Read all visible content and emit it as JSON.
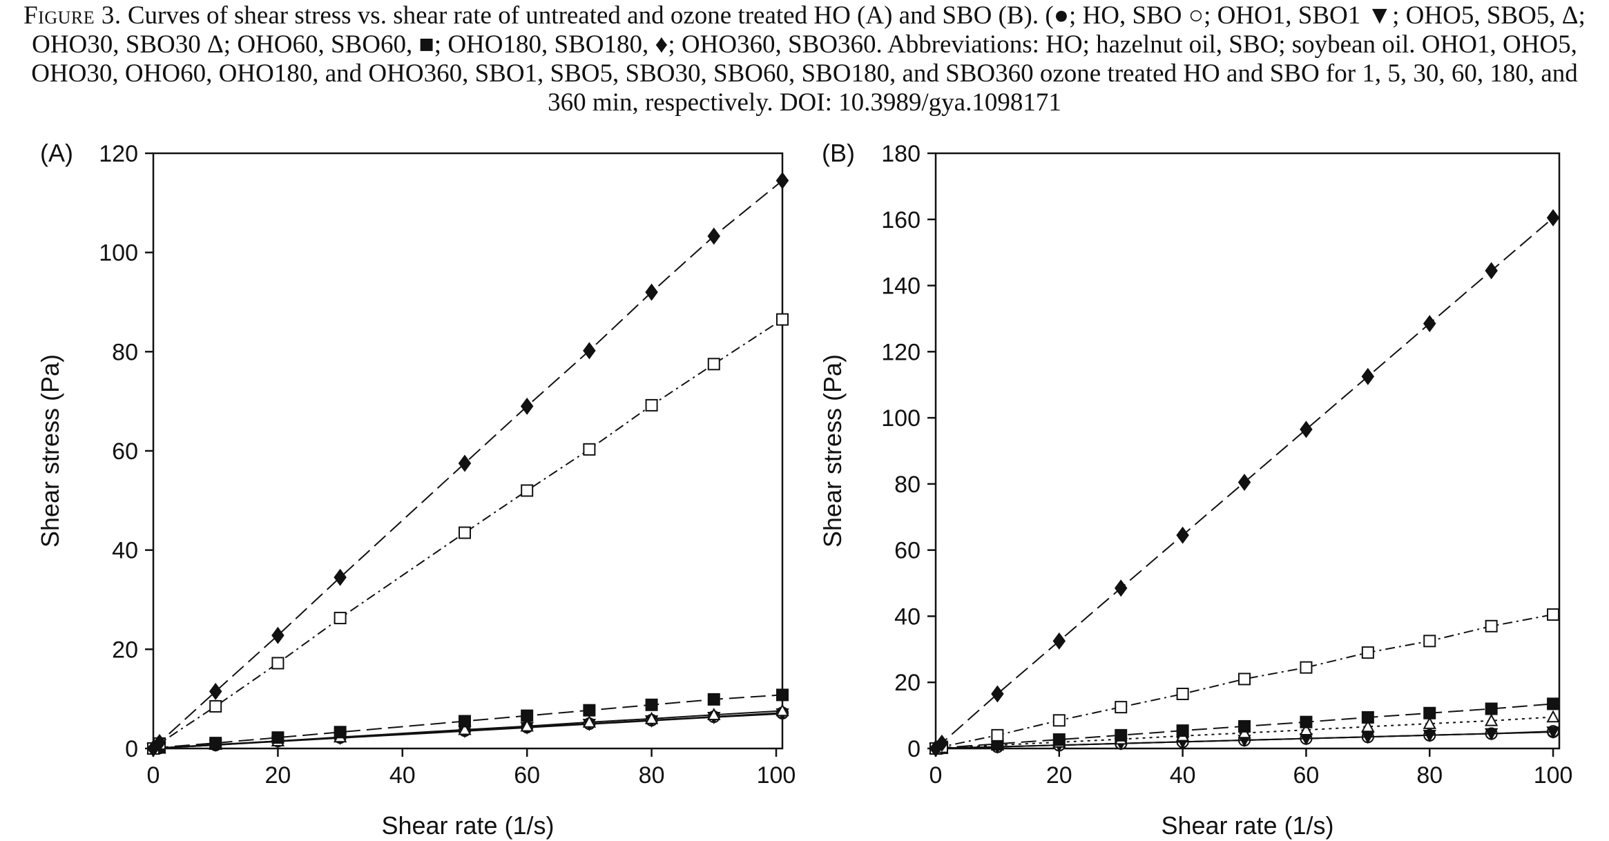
{
  "caption": {
    "label": "Figure 3.",
    "text": "Curves of shear stress vs. shear rate of untreated and ozone treated HO (A) and SBO (B). (●; HO, SBO ○; OHO1, SBO1 ▼; OHO5, SBO5, Δ; OHO30, SBO30 Δ; OHO60, SBO60, ■; OHO180, SBO180, ♦; OHO360, SBO360. Abbreviations: HO; hazelnut oil, SBO; soybean oil. OHO1, OHO5, OHO30, OHO60, OHO180, and OHO360, SBO1, SBO5, SBO30, SBO60, SBO180, and SBO360 ozone treated HO and SBO for 1, 5, 30, 60, 180, and 360 min, respectively. DOI: 10.3989/gya.1098171"
  },
  "chart_data": [
    {
      "type": "line",
      "panel_label": "(A)",
      "xlabel": "Shear rate (1/s)",
      "ylabel": "Shear stress (Pa)",
      "xlim": [
        0,
        101
      ],
      "ylim": [
        0,
        120
      ],
      "xticks": [
        0,
        20,
        40,
        60,
        80,
        100
      ],
      "yticks": [
        0,
        20,
        40,
        60,
        80,
        100,
        120
      ],
      "grid": false,
      "series": [
        {
          "marker": "circle",
          "filled": true,
          "dash": "solid",
          "x": [
            0,
            1,
            10,
            20,
            30,
            50,
            60,
            70,
            80,
            90,
            101
          ],
          "y": [
            0,
            0.1,
            0.7,
            1.5,
            2.2,
            3.6,
            4.3,
            5.0,
            5.7,
            6.4,
            7.1
          ]
        },
        {
          "marker": "circle",
          "filled": false,
          "dash": "solid",
          "x": [
            0,
            1,
            10,
            20,
            30,
            50,
            60,
            70,
            80,
            90,
            101
          ],
          "y": [
            0,
            0.1,
            0.7,
            1.5,
            2.2,
            3.6,
            4.3,
            5.0,
            5.7,
            6.4,
            7.2
          ]
        },
        {
          "marker": "triangle-down",
          "filled": true,
          "dash": "solid",
          "x": [
            0,
            1,
            10,
            20,
            30,
            50,
            60,
            70,
            80,
            90,
            101
          ],
          "y": [
            0,
            0.1,
            0.7,
            1.4,
            2.1,
            3.5,
            4.2,
            4.9,
            5.6,
            6.3,
            7.0
          ]
        },
        {
          "marker": "triangle-up",
          "filled": false,
          "dash": "solid",
          "x": [
            0,
            1,
            10,
            20,
            30,
            50,
            60,
            70,
            80,
            90,
            101
          ],
          "y": [
            0,
            0.1,
            0.8,
            1.5,
            2.3,
            3.8,
            4.5,
            5.3,
            6.0,
            6.8,
            7.6
          ]
        },
        {
          "marker": "square",
          "filled": true,
          "dash": "longdash",
          "x": [
            0,
            1,
            10,
            20,
            30,
            50,
            60,
            70,
            80,
            90,
            101
          ],
          "y": [
            0,
            0.2,
            1.1,
            2.2,
            3.3,
            5.5,
            6.6,
            7.7,
            8.8,
            9.9,
            10.8
          ]
        },
        {
          "marker": "square",
          "filled": false,
          "dash": "dashdot",
          "x": [
            0,
            1,
            10,
            20,
            30,
            50,
            60,
            70,
            80,
            90,
            101
          ],
          "y": [
            0,
            1.0,
            8.5,
            17.2,
            26.3,
            43.5,
            52.0,
            60.3,
            69.2,
            77.5,
            86.5
          ]
        },
        {
          "marker": "diamond",
          "filled": true,
          "dash": "longdash",
          "x": [
            0,
            1,
            10,
            20,
            30,
            50,
            60,
            70,
            80,
            90,
            101
          ],
          "y": [
            0,
            1.2,
            11.5,
            22.8,
            34.5,
            57.5,
            69.0,
            80.2,
            92.0,
            103.3,
            114.5
          ]
        }
      ]
    },
    {
      "type": "line",
      "panel_label": "(B)",
      "xlabel": "Shear rate (1/s)",
      "ylabel": "Shear stress (Pa)",
      "xlim": [
        0,
        101
      ],
      "ylim": [
        0,
        180
      ],
      "xticks": [
        0,
        20,
        40,
        60,
        80,
        100
      ],
      "yticks": [
        0,
        20,
        40,
        60,
        80,
        100,
        120,
        140,
        160,
        180
      ],
      "grid": false,
      "series": [
        {
          "marker": "circle",
          "filled": true,
          "dash": "solid",
          "x": [
            0,
            1,
            10,
            20,
            30,
            40,
            50,
            60,
            70,
            80,
            90,
            100
          ],
          "y": [
            0,
            0.1,
            0.5,
            1.0,
            1.5,
            2.0,
            2.5,
            3.0,
            3.5,
            4.0,
            4.5,
            5.0
          ]
        },
        {
          "marker": "circle",
          "filled": false,
          "dash": "solid",
          "x": [
            0,
            1,
            10,
            20,
            30,
            40,
            50,
            60,
            70,
            80,
            90,
            100
          ],
          "y": [
            0,
            0.1,
            0.5,
            1.0,
            1.5,
            2.0,
            2.5,
            3.0,
            3.5,
            4.0,
            4.5,
            5.2
          ]
        },
        {
          "marker": "triangle-down",
          "filled": true,
          "dash": "solid",
          "x": [
            0,
            1,
            10,
            20,
            30,
            40,
            50,
            60,
            70,
            80,
            90,
            100
          ],
          "y": [
            0,
            0.1,
            0.5,
            1.0,
            1.5,
            2.0,
            2.5,
            3.0,
            3.5,
            4.0,
            4.5,
            5.0
          ]
        },
        {
          "marker": "triangle-up",
          "filled": false,
          "dash": "dotted",
          "x": [
            0,
            1,
            10,
            20,
            30,
            40,
            50,
            60,
            70,
            80,
            90,
            100
          ],
          "y": [
            0,
            0.1,
            1.0,
            1.9,
            2.8,
            3.8,
            4.7,
            5.6,
            6.6,
            7.5,
            8.4,
            9.5
          ]
        },
        {
          "marker": "square",
          "filled": true,
          "dash": "longdash",
          "x": [
            0,
            1,
            10,
            20,
            30,
            40,
            50,
            60,
            70,
            80,
            90,
            100
          ],
          "y": [
            0,
            0.2,
            1.4,
            2.7,
            4.0,
            5.4,
            6.7,
            8.0,
            9.4,
            10.7,
            12.0,
            13.5
          ]
        },
        {
          "marker": "square",
          "filled": false,
          "dash": "dashdot",
          "x": [
            0,
            1,
            10,
            20,
            30,
            40,
            50,
            60,
            70,
            80,
            90,
            100
          ],
          "y": [
            0,
            0.5,
            4.0,
            8.5,
            12.5,
            16.5,
            21.0,
            24.5,
            29.0,
            32.5,
            37.0,
            40.5
          ]
        },
        {
          "marker": "diamond",
          "filled": true,
          "dash": "longdash",
          "x": [
            0,
            1,
            10,
            20,
            30,
            40,
            50,
            60,
            70,
            80,
            90,
            100
          ],
          "y": [
            0,
            1.6,
            16.5,
            32.5,
            48.5,
            64.5,
            80.5,
            96.5,
            112.5,
            128.5,
            144.5,
            160.5
          ]
        }
      ]
    }
  ]
}
